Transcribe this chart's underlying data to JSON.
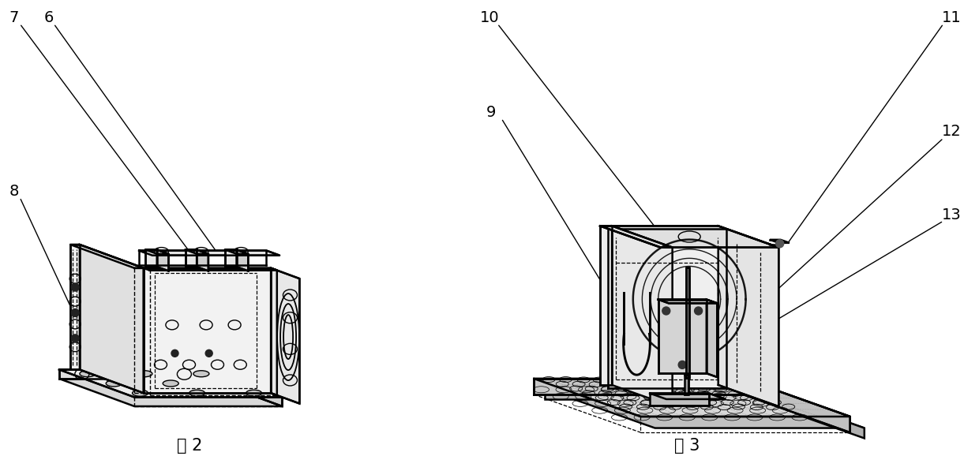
{
  "fig_width": 12.4,
  "fig_height": 5.97,
  "dpi": 100,
  "bg_color": "#ffffff",
  "lc": "#000000",
  "lw_main": 1.8,
  "lw_thin": 1.0,
  "lw_dash": 0.9,
  "label_fontsize": 15,
  "annot_fontsize": 14,
  "fig2_label": "图 2",
  "fig3_label": "图 3"
}
